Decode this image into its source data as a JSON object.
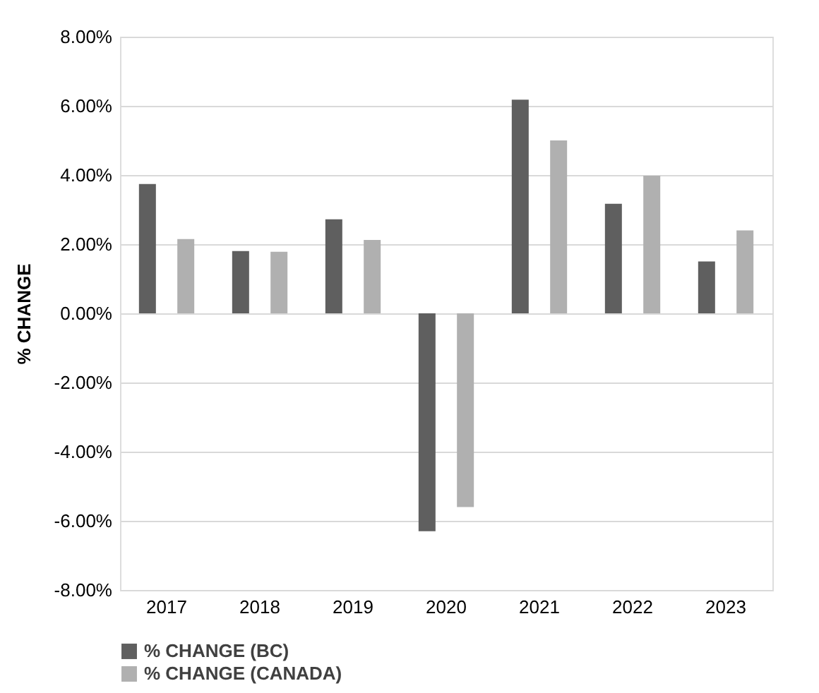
{
  "chart_data": {
    "type": "bar",
    "ylabel": "% CHANGE",
    "categories": [
      "2017",
      "2018",
      "2019",
      "2020",
      "2021",
      "2022",
      "2023"
    ],
    "series": [
      {
        "name": "% CHANGE (BC)",
        "color": "#5f5f5f",
        "values": [
          3.74,
          1.8,
          2.72,
          -6.3,
          6.18,
          3.17,
          1.5
        ]
      },
      {
        "name": "% CHANGE (CANADA)",
        "color": "#b0b0b0",
        "values": [
          2.15,
          1.78,
          2.12,
          -5.6,
          5.0,
          3.98,
          2.4
        ]
      }
    ],
    "ylim": [
      -8,
      8
    ],
    "yticks": [
      {
        "value": -8,
        "label": "-8.00%"
      },
      {
        "value": -6,
        "label": "-6.00%"
      },
      {
        "value": -4,
        "label": "-4.00%"
      },
      {
        "value": -2,
        "label": "-2.00%"
      },
      {
        "value": 0,
        "label": "0.00%"
      },
      {
        "value": 2,
        "label": "2.00%"
      },
      {
        "value": 4,
        "label": "4.00%"
      },
      {
        "value": 6,
        "label": "6.00%"
      },
      {
        "value": 8,
        "label": "8.00%"
      }
    ],
    "grid": "y",
    "legend": "bottom"
  }
}
